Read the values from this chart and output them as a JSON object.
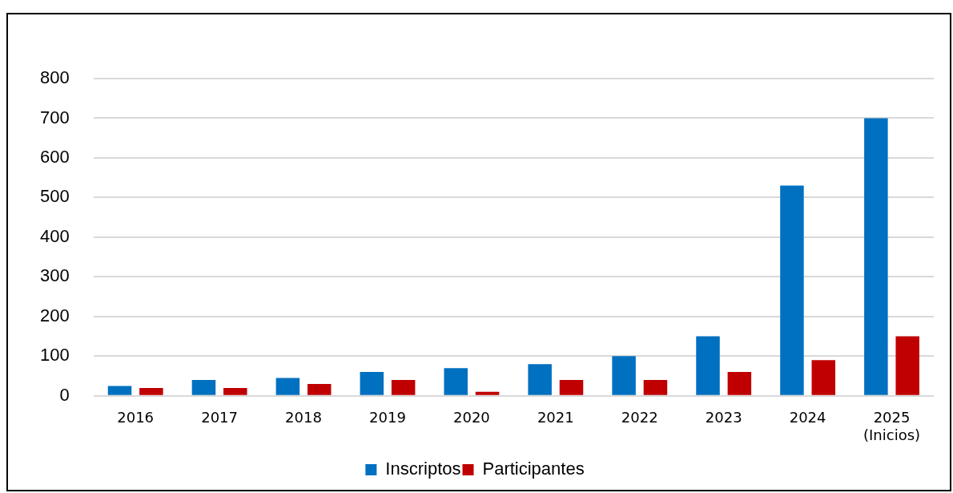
{
  "chart_data": {
    "type": "bar",
    "categories": [
      "2016",
      "2017",
      "2018",
      "2019",
      "2020",
      "2021",
      "2022",
      "2023",
      "2024",
      "2025\n(Inicios)"
    ],
    "series": [
      {
        "name": "Inscriptos",
        "color": "#0070c0",
        "values": [
          25,
          40,
          45,
          60,
          70,
          80,
          100,
          150,
          530,
          700
        ]
      },
      {
        "name": "Participantes",
        "color": "#c00000",
        "values": [
          20,
          20,
          30,
          40,
          10,
          40,
          40,
          60,
          90,
          150
        ]
      }
    ],
    "ylim": [
      0,
      800
    ],
    "yticks": [
      0,
      100,
      200,
      300,
      400,
      500,
      600,
      700,
      800
    ],
    "grid": "y",
    "legend": "bottom"
  }
}
